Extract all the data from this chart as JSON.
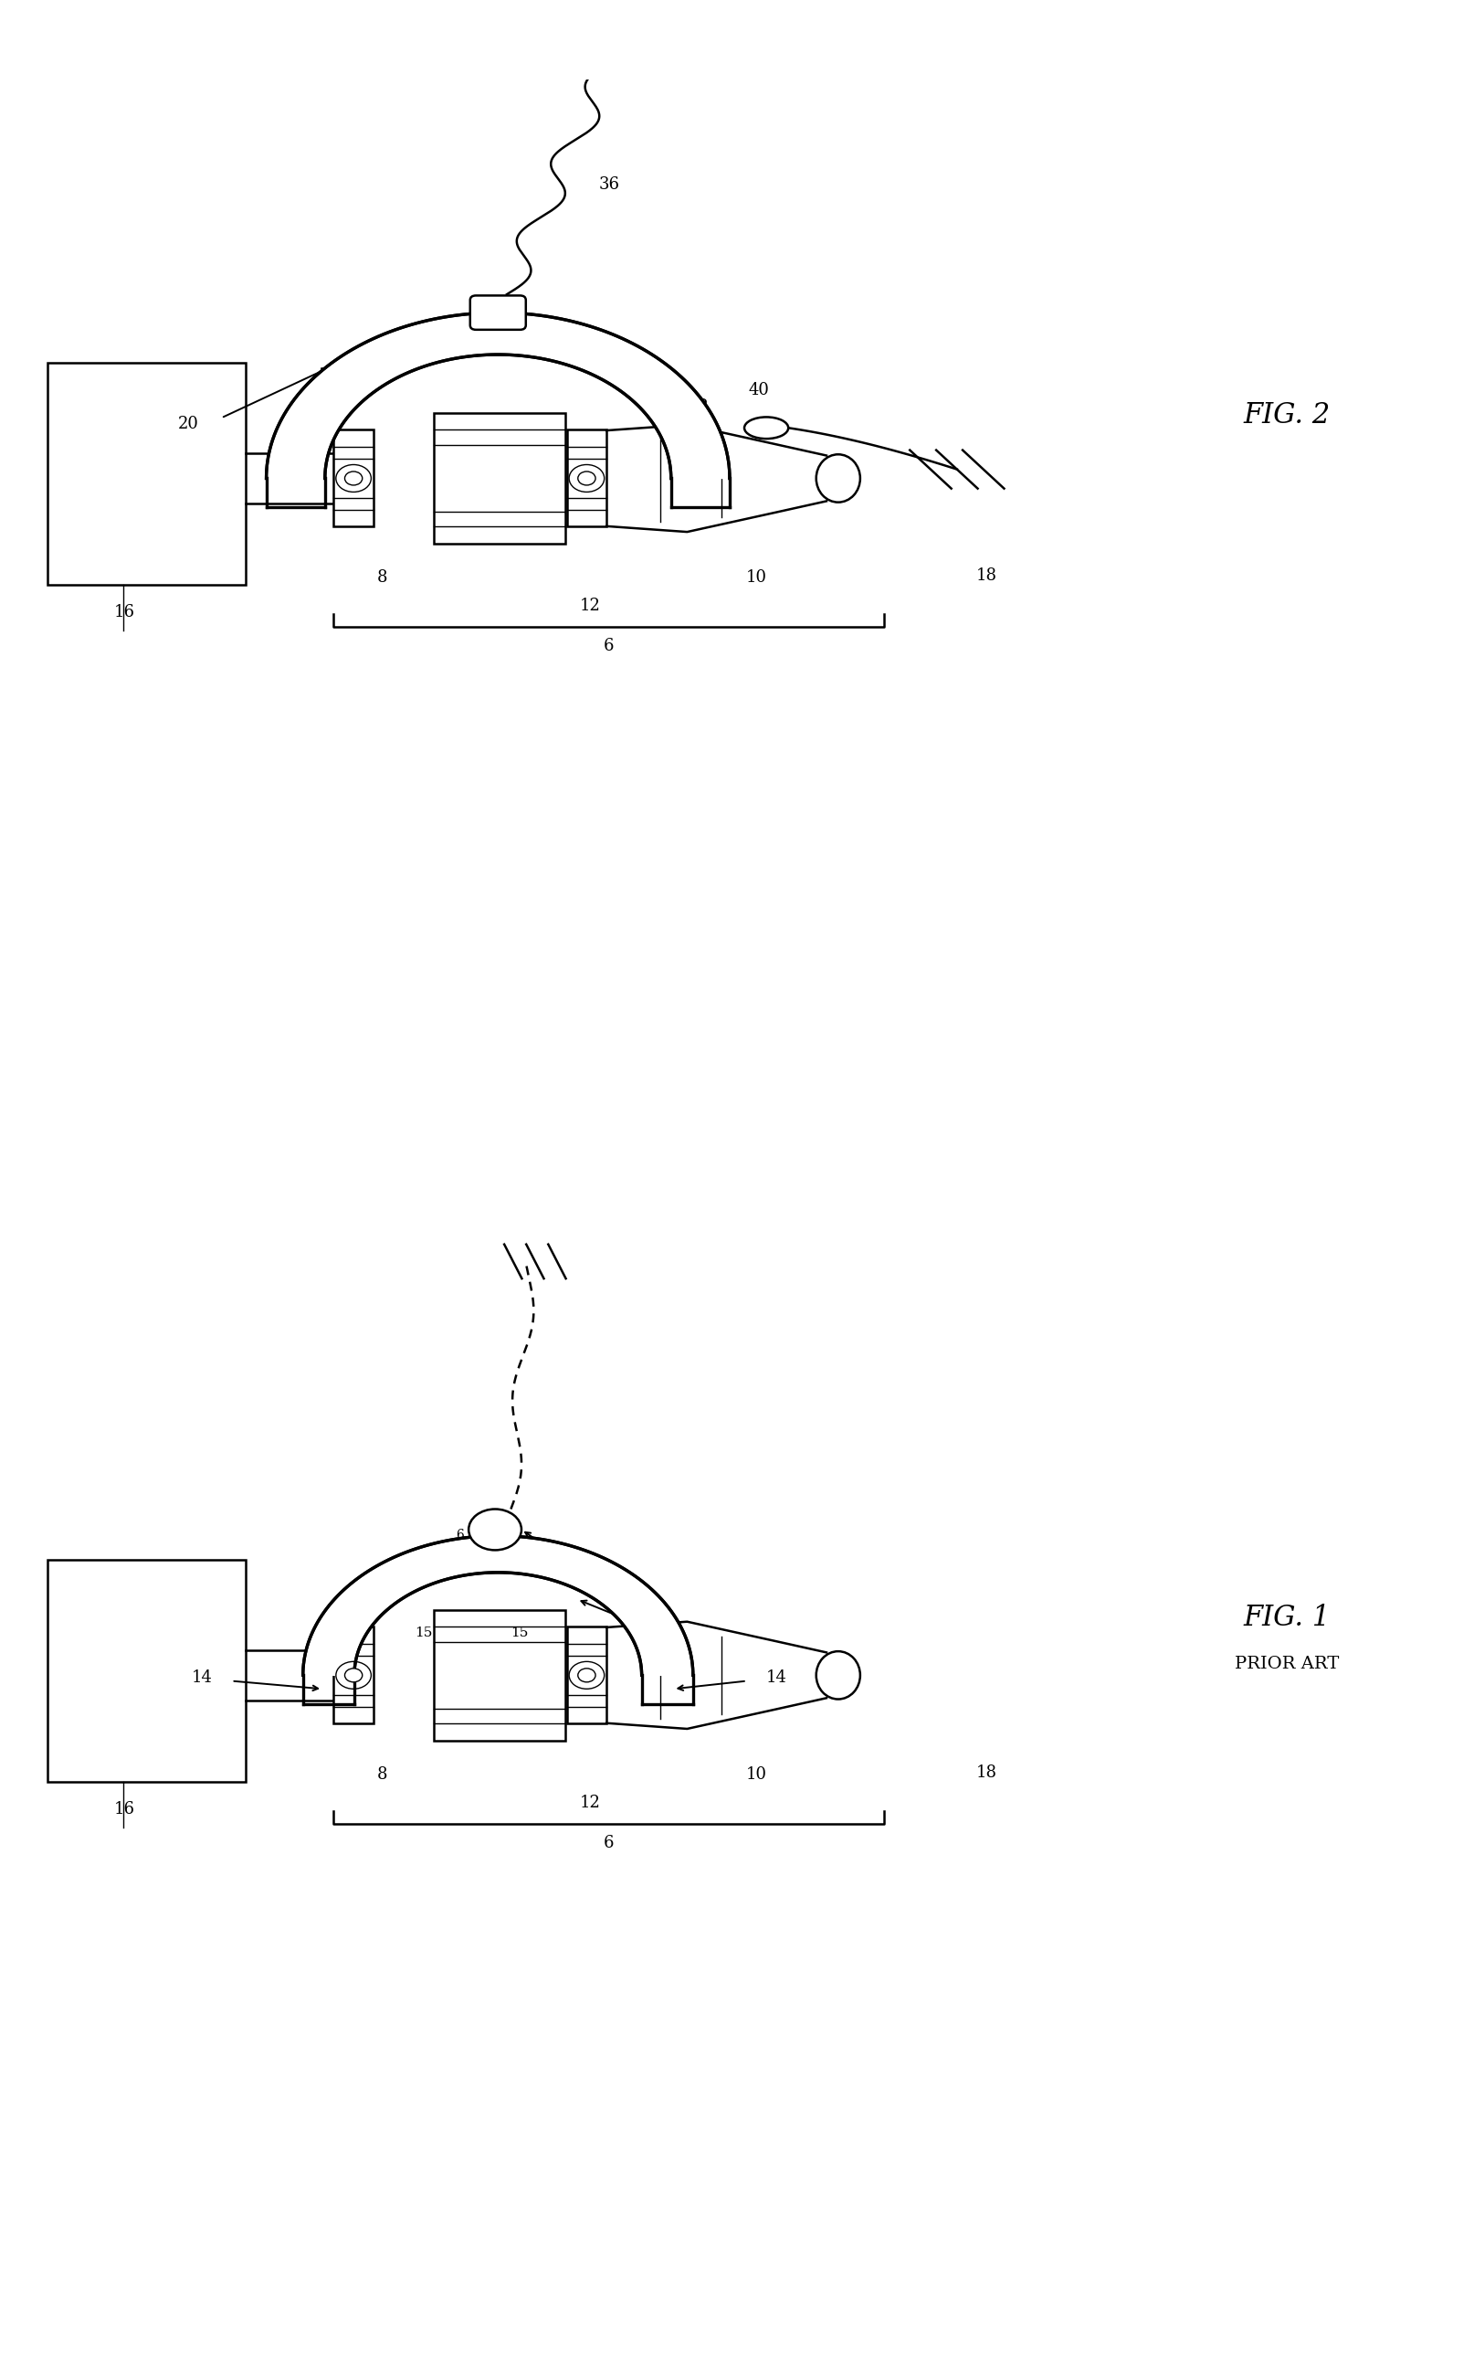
{
  "bg_color": "#ffffff",
  "line_color": "#000000",
  "fig_width": 16.14,
  "fig_height": 25.86,
  "lw_main": 1.8,
  "lw_thick": 2.4,
  "lw_thin": 1.0,
  "fig2_title": "FIG. 2",
  "fig1_title": "FIG. 1",
  "prior_art": "PRIOR ART"
}
